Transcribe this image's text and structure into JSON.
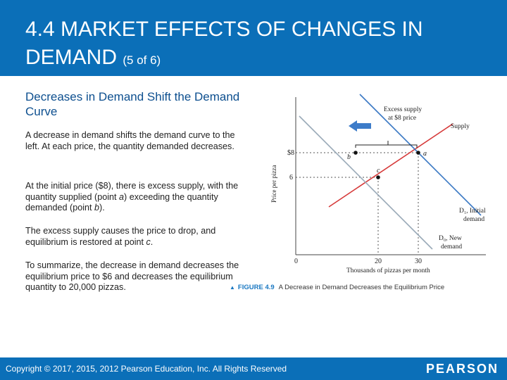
{
  "slide": {
    "title_main": "4.4 MARKET EFFECTS OF CHANGES IN DEMAND",
    "title_suffix": "(5 of 6)",
    "subtitle": "Decreases in Demand Shift the Demand Curve",
    "para1": "A decrease in demand shifts the demand curve to the left. At each price, the quantity demanded decreases.",
    "para2_a": "At the initial price ($8), there is excess supply, with the quantity supplied (point ",
    "para2_b": "a",
    "para2_c": ") exceeding the quantity demanded (point ",
    "para2_d": "b",
    "para2_e": ").",
    "para3_a": "The excess supply causes the price to drop, and equilibrium is restored at point ",
    "para3_b": "c",
    "para3_c": ".",
    "para4": "To summarize, the decrease in demand decreases the equilibrium price to $6 and decreases the equilibrium quantity to 20,000 pizzas."
  },
  "figure": {
    "caption_label": "FIGURE 4.9",
    "caption_text": "A Decrease in Demand Decreases the Equilibrium Price",
    "excess_label_line1": "Excess supply",
    "excess_label_line2": "at $8 price",
    "supply_label": "Supply",
    "d1_label_line1": "D₁, Initial",
    "d1_label_line2": "demand",
    "d0_label_line1": "D₀, New",
    "d0_label_line2": "demand",
    "ylabel": "Price per pizza",
    "xlabel": "Thousands of pizzas per month",
    "point_a": "a",
    "point_b": "b",
    "point_c": "c",
    "colors": {
      "supply": "#d63a3a",
      "demand_initial": "#3a78c4",
      "demand_new": "#9aaab8",
      "arrow": "#3d7cc9"
    }
  },
  "chart_data": {
    "type": "line",
    "title": "",
    "xlabel": "Thousands of pizzas per month",
    "ylabel": "Price per pizza",
    "x_ticks": [
      "0",
      "20",
      "30"
    ],
    "y_ticks": [
      "$8",
      "6"
    ],
    "series": [
      {
        "name": "Supply"
      },
      {
        "name": "D₁, Initial demand"
      },
      {
        "name": "D₀, New demand"
      }
    ],
    "points": [
      {
        "label": "a",
        "x": 30,
        "y": 8
      },
      {
        "label": "b",
        "x": 15,
        "y": 8
      },
      {
        "label": "c",
        "x": 20,
        "y": 6
      }
    ]
  },
  "footer": {
    "copyright": "Copyright © 2017, 2015, 2012 Pearson Education, Inc. All Rights Reserved",
    "logo": "PEARSON"
  }
}
